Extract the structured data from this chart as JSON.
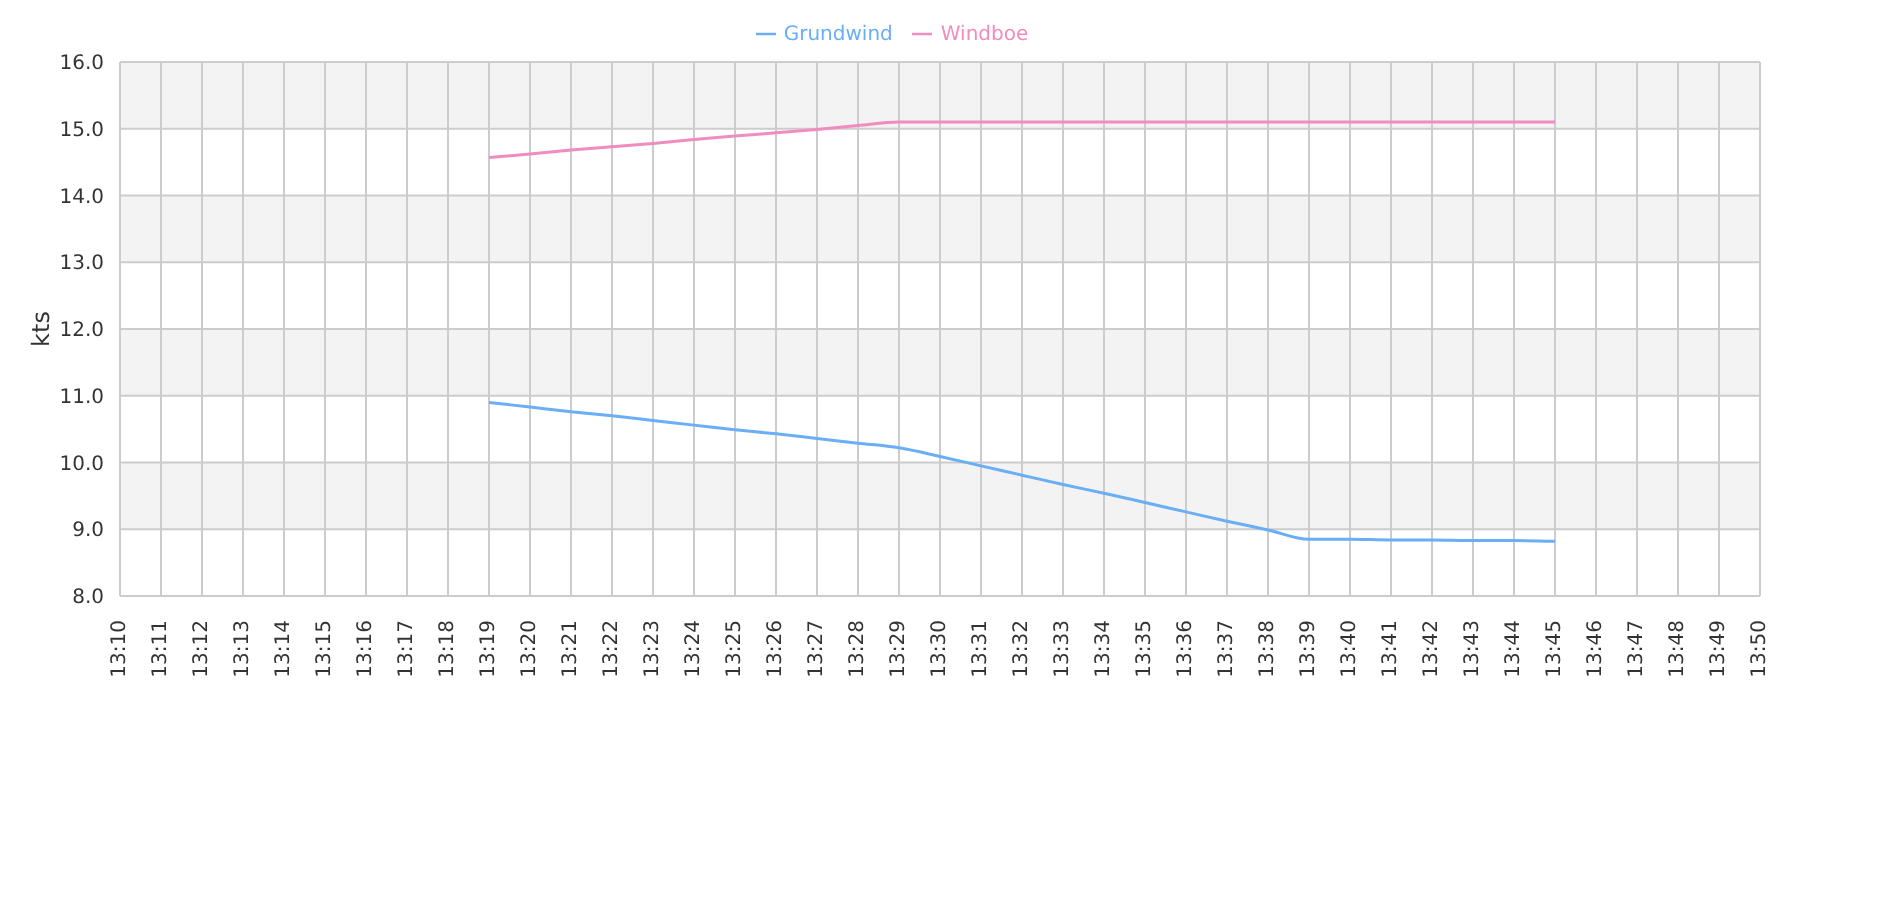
{
  "chart_data": {
    "type": "line",
    "ylabel": "kts",
    "categories": [
      "13:10",
      "13:11",
      "13:12",
      "13:13",
      "13:14",
      "13:15",
      "13:16",
      "13:17",
      "13:18",
      "13:19",
      "13:20",
      "13:21",
      "13:22",
      "13:23",
      "13:24",
      "13:25",
      "13:26",
      "13:27",
      "13:28",
      "13:29",
      "13:30",
      "13:31",
      "13:32",
      "13:33",
      "13:34",
      "13:35",
      "13:36",
      "13:37",
      "13:38",
      "13:39",
      "13:40",
      "13:41",
      "13:42",
      "13:43",
      "13:44",
      "13:45",
      "13:46",
      "13:47",
      "13:48",
      "13:49",
      "13:50"
    ],
    "series": [
      {
        "name": "Grundwind",
        "color": "#6aaef5",
        "values": [
          null,
          null,
          null,
          null,
          null,
          null,
          null,
          null,
          null,
          10.9,
          10.83,
          10.76,
          10.7,
          10.63,
          10.56,
          10.49,
          10.43,
          10.36,
          10.29,
          10.22,
          10.09,
          9.95,
          9.81,
          9.67,
          9.54,
          9.4,
          9.26,
          9.12,
          8.99,
          8.85,
          8.85,
          8.84,
          8.84,
          8.83,
          8.83,
          8.82,
          null,
          null,
          null,
          null,
          null
        ]
      },
      {
        "name": "Windboe",
        "color": "#f08cbf",
        "values": [
          null,
          null,
          null,
          null,
          null,
          null,
          null,
          null,
          null,
          14.57,
          14.62,
          14.68,
          14.73,
          14.78,
          14.84,
          14.89,
          14.94,
          14.99,
          15.05,
          15.1,
          15.1,
          15.1,
          15.1,
          15.1,
          15.1,
          15.1,
          15.1,
          15.1,
          15.1,
          15.1,
          15.1,
          15.1,
          15.1,
          15.1,
          15.1,
          15.1,
          null,
          null,
          null,
          null,
          null
        ]
      }
    ],
    "ylim": [
      8,
      16
    ],
    "yticks": [
      {
        "value": 8,
        "label": "8.0"
      },
      {
        "value": 9,
        "label": "9.0"
      },
      {
        "value": 10,
        "label": "10.0"
      },
      {
        "value": 11,
        "label": "11.0"
      },
      {
        "value": 12,
        "label": "12.0"
      },
      {
        "value": 13,
        "label": "13.0"
      },
      {
        "value": 14,
        "label": "14.0"
      },
      {
        "value": 15,
        "label": "15.0"
      },
      {
        "value": 16,
        "label": "16.0"
      }
    ],
    "grid": true,
    "legend": "top",
    "marker": "none",
    "line_style": "solid"
  }
}
